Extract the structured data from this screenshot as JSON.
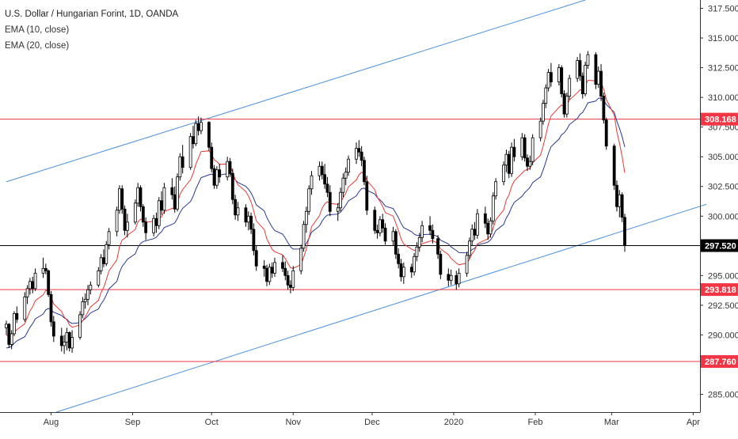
{
  "legend": {
    "title": "U.S. Dollar / Hungarian Forint, 1D, OANDA",
    "ema1": "EMA (10, close)",
    "ema2": "EMA (20, close)"
  },
  "chart_data": {
    "type": "candlestick",
    "ylim": [
      283.5,
      318.2
    ],
    "yticks": [
      {
        "value": 285,
        "label": "285.000"
      },
      {
        "value": 287.5,
        "label": "287.500"
      },
      {
        "value": 290,
        "label": "290.000"
      },
      {
        "value": 292.5,
        "label": "292.500"
      },
      {
        "value": 295,
        "label": "295.000"
      },
      {
        "value": 297.5,
        "label": "297.500"
      },
      {
        "value": 300,
        "label": "300.000"
      },
      {
        "value": 302.5,
        "label": "302.500"
      },
      {
        "value": 305,
        "label": "305.000"
      },
      {
        "value": 307.5,
        "label": "307.500"
      },
      {
        "value": 310,
        "label": "310.000"
      },
      {
        "value": 312.5,
        "label": "312.500"
      },
      {
        "value": 315,
        "label": "315.000"
      },
      {
        "value": 317.5,
        "label": "317.500"
      }
    ],
    "xticks": [
      {
        "label": "Aug",
        "date": "2019-08-01"
      },
      {
        "label": "Sep",
        "date": "2019-09-01"
      },
      {
        "label": "Oct",
        "date": "2019-10-01"
      },
      {
        "label": "Nov",
        "date": "2019-11-01"
      },
      {
        "label": "Dec",
        "date": "2019-12-01"
      },
      {
        "label": "2020",
        "date": "2020-01-01"
      },
      {
        "label": "Feb",
        "date": "2020-02-01"
      },
      {
        "label": "Mar",
        "date": "2020-03-01"
      },
      {
        "label": "Apr",
        "date": "2020-04-01"
      }
    ],
    "x_range": [
      "2019-07-15",
      "2020-04-06"
    ],
    "horizontal_levels": [
      {
        "value": 308.168,
        "label": "308.168",
        "color": "#f23645"
      },
      {
        "value": 293.818,
        "label": "293.818",
        "color": "#f23645"
      },
      {
        "value": 287.76,
        "label": "287.760",
        "color": "#f23645"
      }
    ],
    "last_price": {
      "value": 297.52,
      "label": "297.520",
      "color": "#000000"
    },
    "trendlines": [
      {
        "from": {
          "date": "2019-07-15",
          "value": 302.9
        },
        "to": {
          "date": "2020-02-20",
          "value": 318.2
        },
        "color": "#4a8fe0"
      },
      {
        "from": {
          "date": "2019-08-03",
          "value": 283.5
        },
        "to": {
          "date": "2020-04-06",
          "value": 301.0
        },
        "color": "#4a8fe0"
      }
    ],
    "ema_colors": {
      "ema10": "#e53935",
      "ema20": "#2b3990"
    },
    "candle_colors": {
      "up": "#ffffff",
      "down": "#000000",
      "outline": "#000000"
    },
    "candles": [
      [
        "2019-07-15",
        290.6,
        291.2,
        290.0,
        290.9
      ],
      [
        "2019-07-16",
        290.9,
        291.0,
        288.9,
        289.2
      ],
      [
        "2019-07-17",
        289.2,
        290.4,
        288.8,
        290.1
      ],
      [
        "2019-07-18",
        290.1,
        292.0,
        289.9,
        291.8
      ],
      [
        "2019-07-19",
        291.8,
        292.4,
        291.0,
        291.3
      ],
      [
        "2019-07-22",
        291.3,
        293.6,
        291.1,
        293.2
      ],
      [
        "2019-07-23",
        293.2,
        294.2,
        292.6,
        293.9
      ],
      [
        "2019-07-24",
        293.9,
        294.8,
        293.4,
        294.5
      ],
      [
        "2019-07-25",
        294.5,
        294.9,
        293.5,
        293.9
      ],
      [
        "2019-07-26",
        293.9,
        295.6,
        293.7,
        295.2
      ],
      [
        "2019-07-29",
        295.2,
        296.5,
        294.8,
        295.6
      ],
      [
        "2019-07-30",
        295.6,
        296.0,
        295.1,
        295.4
      ],
      [
        "2019-07-31",
        295.4,
        295.5,
        293.2,
        293.4
      ],
      [
        "2019-08-01",
        293.4,
        293.7,
        290.7,
        291.1
      ],
      [
        "2019-08-02",
        291.1,
        291.6,
        289.4,
        289.9
      ],
      [
        "2019-08-05",
        289.9,
        290.6,
        288.6,
        289.1
      ],
      [
        "2019-08-06",
        289.1,
        290.0,
        288.4,
        289.4
      ],
      [
        "2019-08-07",
        289.4,
        290.6,
        288.7,
        290.2
      ],
      [
        "2019-08-08",
        290.2,
        290.3,
        288.6,
        288.9
      ],
      [
        "2019-08-09",
        288.9,
        290.4,
        288.5,
        289.8
      ],
      [
        "2019-08-12",
        289.8,
        292.0,
        289.6,
        291.7
      ],
      [
        "2019-08-13",
        291.7,
        293.2,
        291.4,
        292.8
      ],
      [
        "2019-08-14",
        292.8,
        293.5,
        292.2,
        293.0
      ],
      [
        "2019-08-15",
        293.0,
        294.2,
        292.5,
        293.8
      ],
      [
        "2019-08-16",
        293.8,
        294.5,
        293.4,
        294.2
      ],
      [
        "2019-08-19",
        294.2,
        295.7,
        294.0,
        295.4
      ],
      [
        "2019-08-20",
        295.4,
        296.8,
        295.1,
        296.5
      ],
      [
        "2019-08-21",
        296.5,
        297.2,
        295.7,
        296.0
      ],
      [
        "2019-08-22",
        296.0,
        297.9,
        295.8,
        297.6
      ],
      [
        "2019-08-23",
        297.6,
        299.0,
        297.2,
        298.7
      ],
      [
        "2019-08-26",
        298.7,
        300.8,
        298.3,
        300.5
      ],
      [
        "2019-08-27",
        300.5,
        302.6,
        300.2,
        302.3
      ],
      [
        "2019-08-28",
        302.3,
        302.6,
        300.2,
        300.6
      ],
      [
        "2019-08-29",
        300.6,
        300.9,
        298.4,
        298.8
      ],
      [
        "2019-08-30",
        298.8,
        300.2,
        298.2,
        299.5
      ],
      [
        "2019-09-02",
        299.5,
        301.4,
        299.3,
        301.1
      ],
      [
        "2019-09-03",
        301.1,
        302.8,
        300.8,
        302.4
      ],
      [
        "2019-09-04",
        302.4,
        302.6,
        300.4,
        300.8
      ],
      [
        "2019-09-05",
        300.8,
        301.0,
        299.1,
        299.5
      ],
      [
        "2019-09-06",
        299.5,
        299.9,
        298.0,
        298.6
      ],
      [
        "2019-09-09",
        298.6,
        300.1,
        298.3,
        299.8
      ],
      [
        "2019-09-10",
        299.8,
        300.3,
        298.6,
        299.2
      ],
      [
        "2019-09-11",
        299.2,
        301.6,
        298.9,
        301.3
      ],
      [
        "2019-09-12",
        301.3,
        302.1,
        300.1,
        300.5
      ],
      [
        "2019-09-13",
        300.5,
        302.8,
        300.2,
        302.4
      ],
      [
        "2019-09-16",
        302.4,
        303.2,
        301.4,
        301.8
      ],
      [
        "2019-09-17",
        301.8,
        302.5,
        300.3,
        300.6
      ],
      [
        "2019-09-18",
        300.6,
        303.6,
        300.4,
        303.3
      ],
      [
        "2019-09-19",
        303.3,
        305.3,
        303.0,
        305.0
      ],
      [
        "2019-09-20",
        305.0,
        306.0,
        303.6,
        304.1
      ],
      [
        "2019-09-23",
        304.1,
        307.0,
        303.9,
        306.7
      ],
      [
        "2019-09-24",
        306.7,
        307.6,
        305.7,
        306.1
      ],
      [
        "2019-09-25",
        306.1,
        308.1,
        305.9,
        307.8
      ],
      [
        "2019-09-26",
        307.8,
        308.4,
        306.8,
        307.2
      ],
      [
        "2019-09-27",
        307.2,
        308.3,
        306.9,
        307.9
      ],
      [
        "2019-09-30",
        307.9,
        308.0,
        305.5,
        305.8
      ],
      [
        "2019-10-01",
        305.8,
        306.2,
        303.7,
        304.0
      ],
      [
        "2019-10-02",
        304.0,
        304.3,
        302.3,
        302.6
      ],
      [
        "2019-10-03",
        302.6,
        304.2,
        302.3,
        303.9
      ],
      [
        "2019-10-04",
        303.9,
        304.4,
        302.8,
        303.3
      ],
      [
        "2019-10-07",
        303.3,
        305.0,
        303.0,
        304.6
      ],
      [
        "2019-10-08",
        304.6,
        304.9,
        303.3,
        303.6
      ],
      [
        "2019-10-09",
        303.6,
        304.0,
        301.0,
        301.4
      ],
      [
        "2019-10-10",
        301.4,
        301.8,
        299.7,
        300.1
      ],
      [
        "2019-10-11",
        300.1,
        301.2,
        299.6,
        300.7
      ],
      [
        "2019-10-14",
        300.7,
        301.0,
        299.1,
        299.5
      ],
      [
        "2019-10-15",
        299.5,
        300.4,
        298.8,
        300.0
      ],
      [
        "2019-10-16",
        300.0,
        300.3,
        298.5,
        298.9
      ],
      [
        "2019-10-17",
        298.9,
        299.4,
        296.7,
        297.1
      ],
      [
        "2019-10-18",
        297.1,
        297.5,
        295.4,
        295.8
      ],
      [
        "2019-10-21",
        295.8,
        296.3,
        294.9,
        295.6
      ],
      [
        "2019-10-22",
        295.6,
        295.9,
        294.1,
        294.5
      ],
      [
        "2019-10-23",
        294.5,
        296.0,
        294.2,
        295.7
      ],
      [
        "2019-10-24",
        295.7,
        296.1,
        294.8,
        295.2
      ],
      [
        "2019-10-25",
        295.2,
        296.5,
        294.9,
        296.1
      ],
      [
        "2019-10-28",
        296.1,
        296.7,
        295.3,
        295.6
      ],
      [
        "2019-10-29",
        295.6,
        296.2,
        294.6,
        295.0
      ],
      [
        "2019-10-30",
        295.0,
        295.4,
        293.8,
        294.2
      ],
      [
        "2019-10-31",
        294.2,
        294.6,
        293.5,
        294.0
      ],
      [
        "2019-11-01",
        294.0,
        295.8,
        293.7,
        295.4
      ],
      [
        "2019-11-04",
        295.4,
        297.6,
        295.1,
        297.3
      ],
      [
        "2019-11-05",
        297.3,
        299.6,
        297.0,
        299.3
      ],
      [
        "2019-11-06",
        299.3,
        300.8,
        298.6,
        300.4
      ],
      [
        "2019-11-07",
        300.4,
        302.6,
        300.1,
        302.3
      ],
      [
        "2019-11-08",
        302.3,
        303.8,
        301.8,
        303.4
      ],
      [
        "2019-11-11",
        303.4,
        304.6,
        303.0,
        304.2
      ],
      [
        "2019-11-12",
        304.2,
        304.6,
        303.1,
        303.5
      ],
      [
        "2019-11-13",
        303.5,
        304.4,
        302.3,
        302.7
      ],
      [
        "2019-11-14",
        302.7,
        303.3,
        301.6,
        302.0
      ],
      [
        "2019-11-15",
        302.0,
        302.6,
        300.0,
        300.4
      ],
      [
        "2019-11-18",
        300.4,
        301.1,
        299.6,
        300.7
      ],
      [
        "2019-11-19",
        300.7,
        302.4,
        300.4,
        302.0
      ],
      [
        "2019-11-20",
        302.0,
        303.6,
        301.6,
        303.2
      ],
      [
        "2019-11-21",
        303.2,
        304.1,
        302.6,
        303.7
      ],
      [
        "2019-11-22",
        303.7,
        305.1,
        303.4,
        304.8
      ],
      [
        "2019-11-25",
        304.8,
        306.2,
        304.4,
        305.7
      ],
      [
        "2019-11-26",
        305.7,
        306.4,
        305.0,
        305.4
      ],
      [
        "2019-11-27",
        305.4,
        305.9,
        304.2,
        304.7
      ],
      [
        "2019-11-28",
        304.7,
        305.0,
        302.6,
        302.9
      ],
      [
        "2019-11-29",
        302.9,
        303.4,
        300.1,
        300.5
      ],
      [
        "2019-12-02",
        300.5,
        300.8,
        298.5,
        298.8
      ],
      [
        "2019-12-03",
        298.8,
        299.3,
        298.1,
        298.6
      ],
      [
        "2019-12-04",
        298.6,
        300.0,
        298.3,
        299.7
      ],
      [
        "2019-12-05",
        299.7,
        300.2,
        298.6,
        299.0
      ],
      [
        "2019-12-06",
        299.0,
        299.4,
        297.6,
        297.9
      ],
      [
        "2019-12-09",
        297.9,
        299.1,
        297.5,
        298.7
      ],
      [
        "2019-12-10",
        298.7,
        298.9,
        296.4,
        296.8
      ],
      [
        "2019-12-11",
        296.8,
        297.3,
        295.6,
        296.0
      ],
      [
        "2019-12-12",
        296.0,
        296.4,
        294.5,
        294.9
      ],
      [
        "2019-12-13",
        294.9,
        296.1,
        294.3,
        295.7
      ],
      [
        "2019-12-16",
        295.7,
        296.0,
        294.8,
        295.3
      ],
      [
        "2019-12-17",
        295.3,
        296.9,
        295.0,
        296.6
      ],
      [
        "2019-12-18",
        296.6,
        297.8,
        296.2,
        297.4
      ],
      [
        "2019-12-19",
        297.4,
        298.6,
        297.0,
        298.2
      ],
      [
        "2019-12-20",
        298.2,
        299.6,
        297.8,
        299.2
      ],
      [
        "2019-12-23",
        299.2,
        300.0,
        298.4,
        298.8
      ],
      [
        "2019-12-24",
        298.8,
        299.3,
        297.7,
        298.1
      ],
      [
        "2019-12-26",
        298.1,
        298.4,
        296.4,
        296.8
      ],
      [
        "2019-12-27",
        296.8,
        297.1,
        294.7,
        295.1
      ],
      [
        "2019-12-30",
        295.1,
        295.6,
        294.1,
        294.6
      ],
      [
        "2019-12-31",
        294.6,
        295.5,
        294.2,
        295.0
      ],
      [
        "2020-01-02",
        295.0,
        295.4,
        293.8,
        294.3
      ],
      [
        "2020-01-03",
        294.3,
        295.6,
        294.0,
        295.2
      ],
      [
        "2020-01-06",
        295.2,
        297.0,
        294.9,
        296.7
      ],
      [
        "2020-01-07",
        296.7,
        298.2,
        296.4,
        297.9
      ],
      [
        "2020-01-08",
        297.9,
        299.3,
        297.5,
        298.9
      ],
      [
        "2020-01-09",
        298.9,
        299.5,
        298.0,
        298.4
      ],
      [
        "2020-01-10",
        298.4,
        300.6,
        298.1,
        300.2
      ],
      [
        "2020-01-13",
        300.2,
        300.8,
        299.0,
        299.4
      ],
      [
        "2020-01-14",
        299.4,
        299.8,
        298.0,
        298.5
      ],
      [
        "2020-01-15",
        298.5,
        299.9,
        298.2,
        299.6
      ],
      [
        "2020-01-16",
        299.6,
        302.0,
        299.3,
        301.7
      ],
      [
        "2020-01-17",
        301.7,
        303.2,
        301.4,
        302.9
      ],
      [
        "2020-01-20",
        302.9,
        304.6,
        302.6,
        304.3
      ],
      [
        "2020-01-21",
        304.3,
        305.6,
        303.7,
        305.2
      ],
      [
        "2020-01-22",
        305.2,
        305.5,
        303.2,
        303.6
      ],
      [
        "2020-01-23",
        303.6,
        306.2,
        303.3,
        305.8
      ],
      [
        "2020-01-24",
        305.8,
        306.5,
        304.6,
        305.0
      ],
      [
        "2020-01-27",
        305.0,
        307.0,
        304.7,
        306.6
      ],
      [
        "2020-01-28",
        306.6,
        306.9,
        304.6,
        304.9
      ],
      [
        "2020-01-29",
        304.9,
        305.2,
        303.8,
        304.2
      ],
      [
        "2020-01-30",
        304.2,
        305.1,
        303.9,
        304.6
      ],
      [
        "2020-01-31",
        304.6,
        306.9,
        304.3,
        306.6
      ],
      [
        "2020-02-03",
        306.6,
        308.3,
        306.3,
        308.0
      ],
      [
        "2020-02-04",
        308.0,
        309.8,
        307.7,
        309.5
      ],
      [
        "2020-02-05",
        309.5,
        311.1,
        309.1,
        310.8
      ],
      [
        "2020-02-06",
        310.8,
        312.4,
        310.5,
        312.1
      ],
      [
        "2020-02-07",
        312.1,
        312.9,
        310.9,
        311.3
      ],
      [
        "2020-02-10",
        311.3,
        312.8,
        311.0,
        312.5
      ],
      [
        "2020-02-11",
        312.5,
        312.7,
        310.0,
        310.3
      ],
      [
        "2020-02-12",
        310.3,
        310.6,
        308.3,
        308.6
      ],
      [
        "2020-02-13",
        308.6,
        310.4,
        308.3,
        310.1
      ],
      [
        "2020-02-14",
        310.1,
        311.9,
        309.8,
        311.6
      ],
      [
        "2020-02-17",
        311.6,
        313.4,
        311.3,
        313.1
      ],
      [
        "2020-02-18",
        313.1,
        313.7,
        311.4,
        311.8
      ],
      [
        "2020-02-19",
        311.8,
        312.1,
        309.9,
        310.3
      ],
      [
        "2020-02-20",
        310.3,
        313.0,
        310.1,
        312.7
      ],
      [
        "2020-02-21",
        312.7,
        313.9,
        312.4,
        313.6
      ],
      [
        "2020-02-24",
        313.6,
        313.8,
        310.7,
        311.1
      ],
      [
        "2020-02-25",
        311.1,
        312.6,
        310.8,
        312.2
      ],
      [
        "2020-02-26",
        312.2,
        312.8,
        309.7,
        310.1
      ],
      [
        "2020-02-27",
        310.1,
        310.4,
        307.8,
        308.1
      ],
      [
        "2020-02-28",
        308.1,
        308.3,
        305.6,
        305.9
      ],
      [
        "2020-03-02",
        305.9,
        306.1,
        302.2,
        302.6
      ],
      [
        "2020-03-03",
        302.6,
        303.0,
        300.4,
        300.8
      ],
      [
        "2020-03-04",
        300.8,
        302.2,
        299.9,
        301.8
      ],
      [
        "2020-03-05",
        301.8,
        302.0,
        299.5,
        299.9
      ],
      [
        "2020-03-06",
        299.9,
        300.2,
        297.0,
        297.52
      ]
    ]
  }
}
